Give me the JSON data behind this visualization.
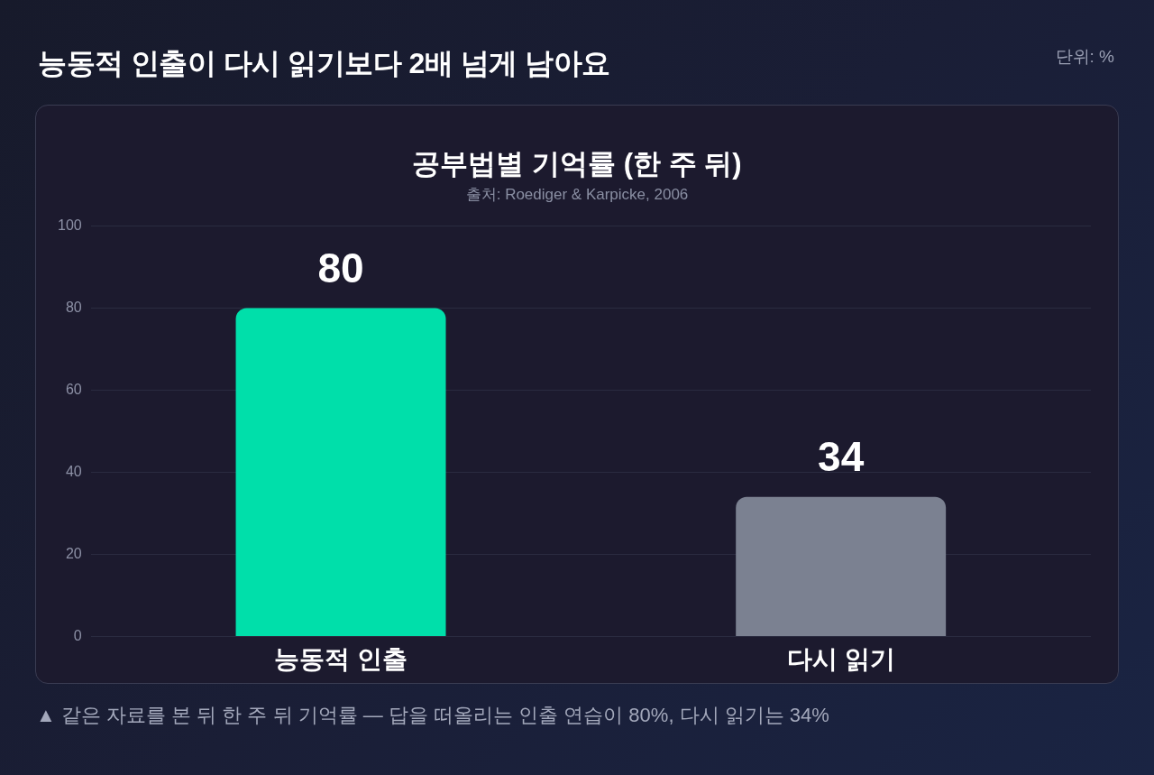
{
  "chart_data": {
    "type": "bar",
    "title": "능동적 인출이 다시 읽기보다 2배 넘게 남아요",
    "subtitle": "공부법별 기억률 (한 주 뒤)",
    "annotations": [
      "출처: Roediger & Karpicke, 2006",
      "단위: %",
      "▲ 같은 자료를 본 뒤 한 주 뒤 기억률 — 답을 떠올리는 인출 연습이 80%, 다시 읽기는 34%"
    ],
    "categories": [
      "능동적 인출",
      "다시 읽기"
    ],
    "values": [
      80,
      34
    ],
    "colors": [
      "#00dfaa",
      "#7b8191"
    ],
    "ylim": [
      0,
      100
    ],
    "yticks": [
      0,
      20,
      40,
      60,
      80,
      100
    ],
    "grid": "y",
    "data_labels": true,
    "legend": false
  }
}
